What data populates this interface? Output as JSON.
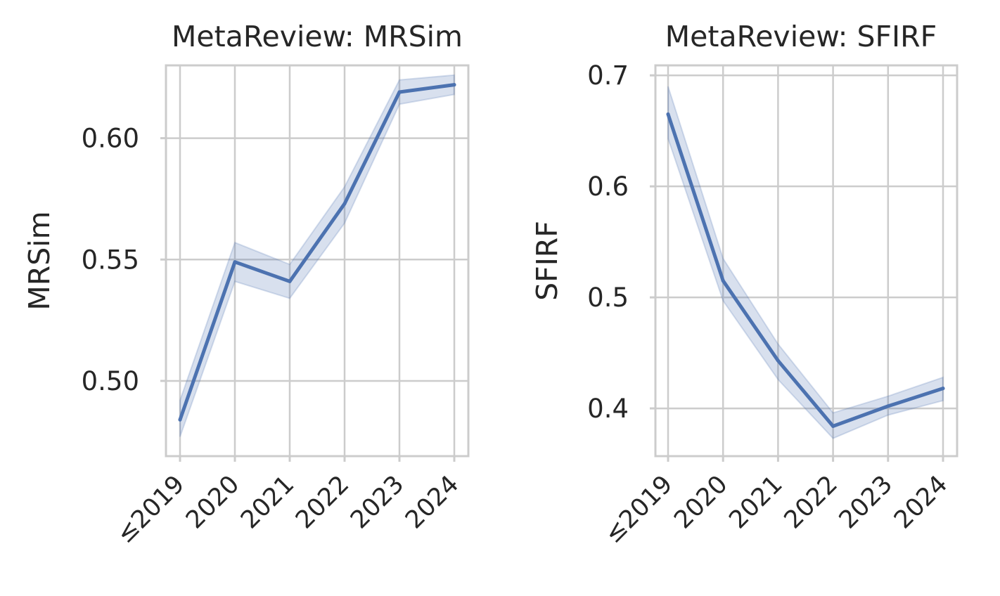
{
  "chart_data": [
    {
      "type": "line",
      "title": "MetaReview: MRSim",
      "xlabel": "",
      "ylabel": "MRSim",
      "categories": [
        "≤2019",
        "2020",
        "2021",
        "2022",
        "2023",
        "2024"
      ],
      "values": [
        0.484,
        0.549,
        0.541,
        0.573,
        0.619,
        0.622
      ],
      "ci_lower": [
        0.477,
        0.541,
        0.534,
        0.565,
        0.614,
        0.618
      ],
      "ci_upper": [
        0.492,
        0.557,
        0.548,
        0.58,
        0.624,
        0.626
      ],
      "ylim": [
        0.469,
        0.63
      ],
      "yticks": [
        0.5,
        0.55,
        0.6
      ],
      "ytick_labels": [
        "0.50",
        "0.55",
        "0.60"
      ],
      "grid": true,
      "color": "#4c72b0"
    },
    {
      "type": "line",
      "title": "MetaReview: SFIRF",
      "xlabel": "",
      "ylabel": "SFIRF",
      "categories": [
        "≤2019",
        "2020",
        "2021",
        "2022",
        "2023",
        "2024"
      ],
      "values": [
        0.665,
        0.515,
        0.443,
        0.384,
        0.402,
        0.418
      ],
      "ci_lower": [
        0.643,
        0.497,
        0.426,
        0.373,
        0.394,
        0.407
      ],
      "ci_upper": [
        0.69,
        0.535,
        0.458,
        0.396,
        0.411,
        0.428
      ],
      "ylim": [
        0.357,
        0.709
      ],
      "yticks": [
        0.4,
        0.5,
        0.6,
        0.7
      ],
      "ytick_labels": [
        "0.4",
        "0.5",
        "0.6",
        "0.7"
      ],
      "grid": true,
      "color": "#4c72b0"
    }
  ]
}
